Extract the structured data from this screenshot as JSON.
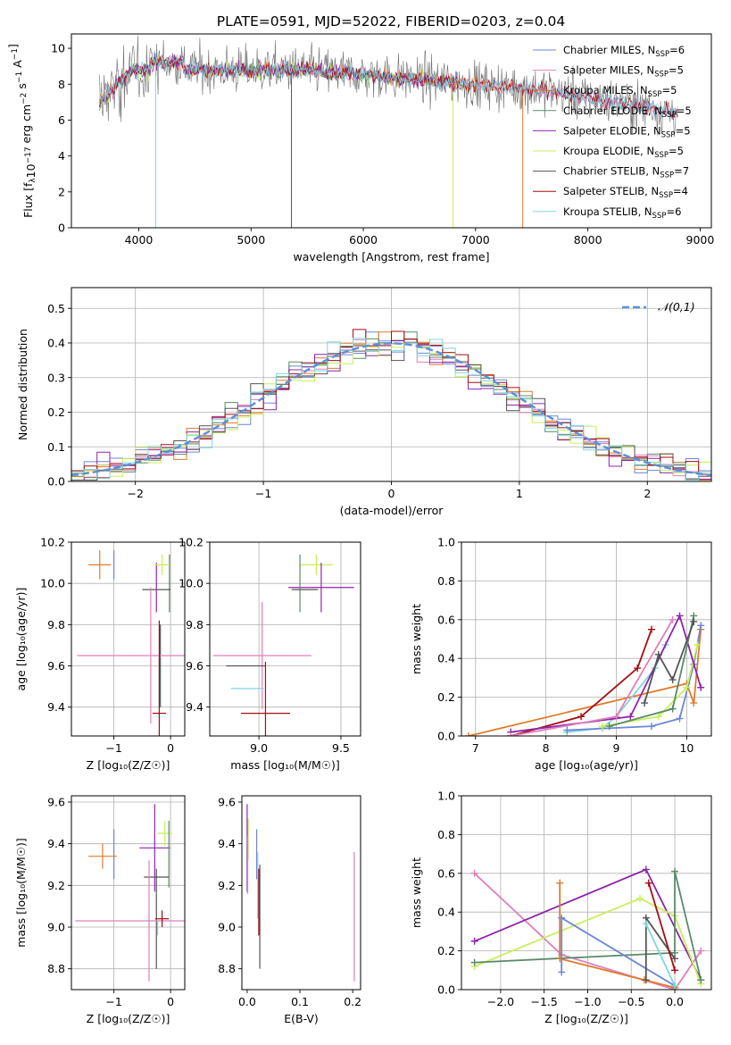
{
  "figure_title": "PLATE=0591, MJD=52022, FIBERID=0203, z=0.04",
  "colors": {
    "Chabrier MILES": "#6b87d6",
    "Salpeter MILES": "#e07fb9",
    "Kroupa MILES": "#e07b2a",
    "Chabrier ELODIE": "#5a8a68",
    "Salpeter ELODIE": "#8e24aa",
    "Kroupa ELODIE": "#c8ef5a",
    "Chabrier STELIB": "#555555",
    "Salpeter STELIB": "#a50d10",
    "Kroupa STELIB": "#7ed7dc",
    "normal": "#5b8fd9",
    "grid": "#b0b0b0"
  },
  "chart_data": [
    {
      "id": "spectrum",
      "type": "line",
      "xlabel": "wavelength [Angstrom, rest frame]",
      "ylabel_parts": [
        "Flux [f",
        "λ",
        "10",
        "−17",
        " erg cm",
        "−2",
        " s",
        "−1",
        " A",
        "−1",
        "]"
      ],
      "xlim": [
        3400,
        9100
      ],
      "ylim": [
        0,
        10.8
      ],
      "xticks": [
        4000,
        5000,
        6000,
        7000,
        8000,
        9000
      ],
      "yticks": [
        0,
        2,
        4,
        6,
        8,
        10
      ],
      "grid": false,
      "legend_position": "top-right",
      "data_range": [
        3650,
        8800
      ],
      "legend": [
        {
          "name": "Chabrier MILES",
          "label": "Chabrier MILES, N",
          "sub": "SSP",
          "suffix": "=6"
        },
        {
          "name": "Salpeter MILES",
          "label": "Salpeter MILES, N",
          "sub": "SSP",
          "suffix": "=5"
        },
        {
          "name": "Kroupa MILES",
          "label": "Kroupa MILES, N",
          "sub": "SSP",
          "suffix": "=5"
        },
        {
          "name": "Chabrier ELODIE",
          "label": "Chabrier ELODIE, N",
          "sub": "SSP",
          "suffix": "=5"
        },
        {
          "name": "Salpeter ELODIE",
          "label": "Salpeter ELODIE, N",
          "sub": "SSP",
          "suffix": "=5"
        },
        {
          "name": "Kroupa ELODIE",
          "label": "Kroupa ELODIE, N",
          "sub": "SSP",
          "suffix": "=5"
        },
        {
          "name": "Chabrier STELIB",
          "label": "Chabrier STELIB, N",
          "sub": "SSP",
          "suffix": "=7"
        },
        {
          "name": "Salpeter STELIB",
          "label": "Salpeter STELIB, N",
          "sub": "SSP",
          "suffix": "=4"
        },
        {
          "name": "Kroupa STELIB",
          "label": "Kroupa STELIB, N",
          "sub": "SSP",
          "suffix": "=6"
        }
      ],
      "dropouts": [
        {
          "series": "Chabrier STELIB",
          "x": 5360
        },
        {
          "series": "Kroupa ELODIE",
          "x": 6800
        },
        {
          "series": "Kroupa STELIB",
          "x": 4150
        },
        {
          "series": "Kroupa MILES",
          "x": 7420
        }
      ]
    },
    {
      "id": "residuals",
      "type": "histogram",
      "xlabel": "(data-model)/error",
      "ylabel": "Normed distribution",
      "xlim": [
        -2.5,
        2.5
      ],
      "ylim": [
        0,
        0.56
      ],
      "xticks": [
        -2,
        -1,
        0,
        1,
        2
      ],
      "yticks": [
        0.0,
        0.1,
        0.2,
        0.3,
        0.4,
        0.5
      ],
      "grid": true,
      "bin_width": 0.1,
      "legend_position": "top-right",
      "curve": {
        "name": "𝒩(0,1)",
        "mean": 0,
        "sigma": 1
      }
    },
    {
      "id": "age_vs_Z",
      "type": "errorbar",
      "xlabel": "Z [log₁₀(Z/Z☉)]",
      "ylabel": "age  [log₁₀(age/yr)]",
      "xlim": [
        -1.75,
        0.25
      ],
      "ylim": [
        9.26,
        10.2
      ],
      "xticks": [
        -1,
        0
      ],
      "yticks": [
        9.4,
        9.6,
        9.8,
        10.0,
        10.2
      ],
      "grid": true,
      "points": [
        {
          "series": "Chabrier MILES",
          "x": -1.0,
          "xerr": 0.0,
          "y": 10.09,
          "yerr": 0.07
        },
        {
          "series": "Kroupa MILES",
          "x": -1.25,
          "xerr": 0.2,
          "y": 10.09,
          "yerr": 0.07
        },
        {
          "series": "Chabrier ELODIE",
          "x": -0.02,
          "xerr": 0.0,
          "y": 10.0,
          "yerr": 0.14
        },
        {
          "series": "Salpeter ELODIE",
          "x": -0.25,
          "xerr": 0.0,
          "y": 9.98,
          "yerr": 0.12
        },
        {
          "series": "Kroupa ELODIE",
          "x": -0.15,
          "xerr": 0.13,
          "y": 10.09,
          "yerr": 0.05
        },
        {
          "series": "Chabrier STELIB",
          "x": -0.25,
          "xerr": 0.25,
          "y": 9.97,
          "yerr": 0.0
        },
        {
          "series": "Chabrier STELIB",
          "x": -0.18,
          "xerr": 0.0,
          "y": 9.6,
          "yerr": 0.2
        },
        {
          "series": "Salpeter MILES",
          "x": -0.35,
          "xerr": 1.3,
          "y": 9.65,
          "yerr": 0.33
        },
        {
          "series": "Kroupa STELIB",
          "x": -0.2,
          "xerr": 0.0,
          "y": 9.49,
          "yerr": 0.15
        },
        {
          "series": "Salpeter STELIB",
          "x": -0.2,
          "xerr": 0.12,
          "y": 9.37,
          "yerr": 0.45
        }
      ]
    },
    {
      "id": "age_vs_mass",
      "type": "errorbar",
      "xlabel": "mass [log₁₀(M/M☉)]",
      "ylabel": "",
      "xlim": [
        8.7,
        9.62
      ],
      "ylim": [
        9.26,
        10.2
      ],
      "xticks": [
        9.0,
        9.5
      ],
      "yticks": [
        9.4,
        9.6,
        9.8,
        10.0,
        10.2
      ],
      "grid": true,
      "points": [
        {
          "series": "Kroupa ELODIE",
          "x": 9.35,
          "xerr": 0.1,
          "y": 10.09,
          "yerr": 0.05
        },
        {
          "series": "Salpeter ELODIE",
          "x": 9.38,
          "xerr": 0.2,
          "y": 9.98,
          "yerr": 0.12
        },
        {
          "series": "Chabrier ELODIE",
          "x": 9.25,
          "xerr": 0.0,
          "y": 10.0,
          "yerr": 0.14
        },
        {
          "series": "Chabrier STELIB",
          "x": 9.28,
          "xerr": 0.08,
          "y": 9.97,
          "yerr": 0.0
        },
        {
          "series": "Salpeter MILES",
          "x": 9.02,
          "xerr": 0.3,
          "y": 9.65,
          "yerr": 0.26
        },
        {
          "series": "Chabrier STELIB",
          "x": 8.92,
          "xerr": 0.12,
          "y": 9.6,
          "yerr": 0.0
        },
        {
          "series": "Kroupa STELIB",
          "x": 8.93,
          "xerr": 0.1,
          "y": 9.49,
          "yerr": 0.0
        },
        {
          "series": "Salpeter STELIB",
          "x": 9.04,
          "xerr": 0.15,
          "y": 9.37,
          "yerr": 0.25
        }
      ]
    },
    {
      "id": "mass_weight_vs_age",
      "type": "line",
      "xlabel": "age  [log₁₀(age/yr)]",
      "ylabel": "mass weight",
      "xlim": [
        6.8,
        10.35
      ],
      "ylim": [
        0,
        1.0
      ],
      "xticks": [
        7,
        8,
        9,
        10
      ],
      "yticks": [
        0.0,
        0.2,
        0.4,
        0.6,
        0.8,
        1.0
      ],
      "grid": true,
      "series": [
        {
          "name": "Kroupa MILES",
          "points": [
            [
              6.9,
              0.0
            ],
            [
              10.0,
              0.27
            ],
            [
              10.1,
              0.17
            ],
            [
              10.2,
              0.55
            ]
          ]
        },
        {
          "name": "Salpeter STELIB",
          "points": [
            [
              7.5,
              0.0
            ],
            [
              8.5,
              0.1
            ],
            [
              9.3,
              0.35
            ],
            [
              9.5,
              0.55
            ]
          ]
        },
        {
          "name": "Kroupa STELIB",
          "points": [
            [
              8.3,
              0.02
            ],
            [
              8.8,
              0.04
            ],
            [
              9.0,
              0.1
            ],
            [
              9.55,
              0.35
            ],
            [
              9.7,
              0.47
            ]
          ]
        },
        {
          "name": "Chabrier MILES",
          "points": [
            [
              8.3,
              0.03
            ],
            [
              9.5,
              0.05
            ],
            [
              9.9,
              0.09
            ],
            [
              10.1,
              0.37
            ],
            [
              10.2,
              0.57
            ]
          ]
        },
        {
          "name": "Kroupa ELODIE",
          "points": [
            [
              8.8,
              0.05
            ],
            [
              9.6,
              0.1
            ],
            [
              10.0,
              0.25
            ],
            [
              10.15,
              0.47
            ]
          ]
        },
        {
          "name": "Salpeter ELODIE",
          "points": [
            [
              7.5,
              0.02
            ],
            [
              9.2,
              0.1
            ],
            [
              9.9,
              0.62
            ],
            [
              10.2,
              0.25
            ]
          ]
        },
        {
          "name": "Chabrier ELODIE",
          "points": [
            [
              8.9,
              0.05
            ],
            [
              9.8,
              0.14
            ],
            [
              10.1,
              0.62
            ]
          ]
        },
        {
          "name": "Chabrier STELIB",
          "points": [
            [
              9.4,
              0.17
            ],
            [
              9.6,
              0.42
            ],
            [
              9.8,
              0.29
            ],
            [
              10.1,
              0.59
            ]
          ]
        },
        {
          "name": "Salpeter MILES",
          "points": [
            [
              7.5,
              0.0
            ],
            [
              9.0,
              0.1
            ],
            [
              9.8,
              0.6
            ]
          ]
        }
      ]
    },
    {
      "id": "mass_vs_Z",
      "type": "errorbar",
      "xlabel": "Z [log₁₀(Z/Z☉)]",
      "ylabel": "mass [log₁₀(M/M☉)]",
      "xlim": [
        -1.75,
        0.25
      ],
      "ylim": [
        8.7,
        9.63
      ],
      "xticks": [
        -1,
        0
      ],
      "yticks": [
        8.8,
        9.0,
        9.2,
        9.4,
        9.6
      ],
      "grid": true,
      "points": [
        {
          "series": "Chabrier MILES",
          "x": -1.0,
          "xerr": 0.0,
          "y": 9.35,
          "yerr": 0.12
        },
        {
          "series": "Kroupa MILES",
          "x": -1.2,
          "xerr": 0.25,
          "y": 9.34,
          "yerr": 0.06
        },
        {
          "series": "Salpeter ELODIE",
          "x": -0.28,
          "xerr": 0.27,
          "y": 9.38,
          "yerr": 0.21
        },
        {
          "series": "Kroupa ELODIE",
          "x": -0.1,
          "xerr": 0.13,
          "y": 9.45,
          "yerr": 0.06
        },
        {
          "series": "Chabrier ELODIE",
          "x": -0.03,
          "xerr": 0.0,
          "y": 9.35,
          "yerr": 0.16
        },
        {
          "series": "Chabrier STELIB",
          "x": -0.25,
          "xerr": 0.22,
          "y": 9.24,
          "yerr": 0.0
        },
        {
          "series": "Chabrier STELIB",
          "x": -0.25,
          "xerr": 0.0,
          "y": 9.04,
          "yerr": 0.24
        },
        {
          "series": "Salpeter MILES",
          "x": -0.38,
          "xerr": 1.3,
          "y": 9.03,
          "yerr": 0.29
        },
        {
          "series": "Salpeter STELIB",
          "x": -0.15,
          "xerr": 0.12,
          "y": 9.04,
          "yerr": 0.04
        },
        {
          "series": "Kroupa STELIB",
          "x": -0.23,
          "xerr": 0.0,
          "y": 9.0,
          "yerr": 0.04
        }
      ]
    },
    {
      "id": "mass_vs_EBV",
      "type": "errorbar",
      "xlabel": "E(B-V)",
      "ylabel": "",
      "xlim": [
        -0.01,
        0.215
      ],
      "ylim": [
        8.7,
        9.63
      ],
      "xticks": [
        0.0,
        0.1,
        0.2
      ],
      "yticks": [
        8.8,
        9.0,
        9.2,
        9.4,
        9.6
      ],
      "grid": false,
      "points": [
        {
          "series": "Salpeter ELODIE",
          "x": 0.0,
          "xerr": 0.0,
          "y": 9.38,
          "yerr": 0.21
        },
        {
          "series": "Kroupa ELODIE",
          "x": 0.002,
          "xerr": 0.0,
          "y": 9.42,
          "yerr": 0.1
        },
        {
          "series": "Salpeter MILES",
          "x": 0.001,
          "xerr": 0.0,
          "y": 9.3,
          "yerr": 0.14
        },
        {
          "series": "Chabrier MILES",
          "x": 0.018,
          "xerr": 0.0,
          "y": 9.35,
          "yerr": 0.12
        },
        {
          "series": "Kroupa STELIB",
          "x": 0.02,
          "xerr": 0.0,
          "y": 9.2,
          "yerr": 0.16
        },
        {
          "series": "Salpeter STELIB",
          "x": 0.022,
          "xerr": 0.0,
          "y": 9.12,
          "yerr": 0.16
        },
        {
          "series": "Chabrier STELIB",
          "x": 0.024,
          "xerr": 0.0,
          "y": 9.05,
          "yerr": 0.25
        },
        {
          "series": "Salpeter MILES",
          "x": 0.203,
          "xerr": 0.0,
          "y": 9.05,
          "yerr": 0.31
        }
      ]
    },
    {
      "id": "mass_weight_vs_Z",
      "type": "line",
      "xlabel": "Z [log₁₀(Z/Z☉)]",
      "ylabel": "mass weight",
      "xlim": [
        -2.45,
        0.42
      ],
      "ylim": [
        0,
        1.0
      ],
      "xticks": [
        -2.0,
        -1.5,
        -1.0,
        -0.5,
        0.0
      ],
      "grid": true,
      "series": [
        {
          "name": "Salpeter MILES",
          "points": [
            [
              -2.3,
              0.6
            ],
            [
              -1.3,
              0.18
            ],
            [
              0.0,
              0.0
            ],
            [
              0.3,
              0.2
            ]
          ]
        },
        {
          "name": "Salpeter ELODIE",
          "points": [
            [
              -2.3,
              0.25
            ],
            [
              -0.33,
              0.62
            ],
            [
              0.3,
              0.05
            ]
          ]
        },
        {
          "name": "Kroupa ELODIE",
          "points": [
            [
              -2.3,
              0.12
            ],
            [
              -0.4,
              0.47
            ],
            [
              0.0,
              0.38
            ],
            [
              0.3,
              0.03
            ]
          ]
        },
        {
          "name": "Chabrier ELODIE",
          "points": [
            [
              -2.3,
              0.14
            ],
            [
              0.0,
              0.19
            ],
            [
              0.0,
              0.61
            ],
            [
              0.3,
              0.05
            ]
          ]
        },
        {
          "name": "Kroupa MILES",
          "points": [
            [
              -1.32,
              0.55
            ],
            [
              -1.32,
              0.16
            ],
            [
              -0.35,
              0.05
            ],
            [
              0.0,
              0.01
            ]
          ]
        },
        {
          "name": "Chabrier MILES",
          "points": [
            [
              -1.3,
              0.09
            ],
            [
              -1.3,
              0.37
            ],
            [
              0.0,
              0.02
            ]
          ]
        },
        {
          "name": "Chabrier STELIB",
          "points": [
            [
              -0.33,
              0.05
            ],
            [
              -0.33,
              0.37
            ],
            [
              0.0,
              0.16
            ]
          ]
        },
        {
          "name": "Kroupa STELIB",
          "points": [
            [
              -0.33,
              0.34
            ],
            [
              0.0,
              0.02
            ]
          ]
        },
        {
          "name": "Salpeter STELIB",
          "points": [
            [
              -0.3,
              0.55
            ],
            [
              0.0,
              0.1
            ]
          ]
        }
      ]
    }
  ]
}
